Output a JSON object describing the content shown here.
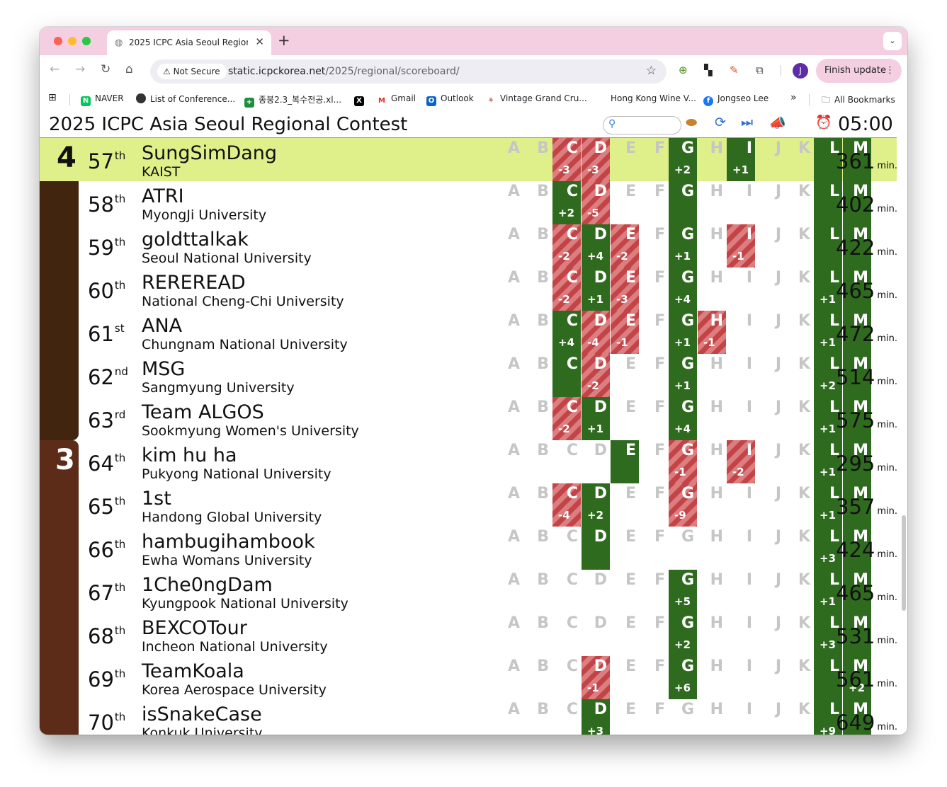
{
  "browser": {
    "tab_title": "2025 ICPC Asia Seoul Region",
    "security_label": "Not Secure",
    "url_host": "static.icpckorea.net",
    "url_path": "/2025/regional/scoreboard/",
    "finish_update_label": "Finish update",
    "profile_initial": "J",
    "bookmarks": [
      "NAVER",
      "List of Conference...",
      "종붕2.3_복수전공.xl...",
      "Gmail",
      "Outlook",
      "Vintage Grand Cru...",
      "Hong Kong Wine V...",
      "Jongseo Lee"
    ],
    "all_bookmarks_label": "All Bookmarks"
  },
  "scoreboard": {
    "title": "2025 ICPC Asia Seoul Regional Contest",
    "time_remaining": "05:00",
    "penalty_unit": "min.",
    "groups": [
      {
        "label": "4",
        "color": "#42250f"
      },
      {
        "label": "3",
        "color": "#5c2c18"
      }
    ],
    "highlight_color": "#dff08a",
    "problems": [
      "A",
      "B",
      "C",
      "D",
      "E",
      "F",
      "G",
      "H",
      "I",
      "J",
      "K",
      "L",
      "M"
    ],
    "rows": [
      {
        "rank": "57",
        "suffix": "th",
        "team": "SungSimDang",
        "univ": "KAIST",
        "penalty": "361",
        "group": 0,
        "highlight": true,
        "cells": {
          "C": [
            "f",
            "-3"
          ],
          "D": [
            "f",
            "-3"
          ],
          "G": [
            "s",
            "+2"
          ],
          "I": [
            "s",
            "+1"
          ],
          "L": [
            "s",
            ""
          ],
          "M": [
            "s",
            ""
          ]
        }
      },
      {
        "rank": "58",
        "suffix": "th",
        "team": "ATRI",
        "univ": "MyongJi University",
        "penalty": "402",
        "group": 0,
        "cells": {
          "C": [
            "s",
            "+2"
          ],
          "D": [
            "f",
            "-5"
          ],
          "G": [
            "s",
            ""
          ],
          "L": [
            "s",
            ""
          ],
          "M": [
            "s",
            ""
          ]
        }
      },
      {
        "rank": "59",
        "suffix": "th",
        "team": "goldttalkak",
        "univ": "Seoul National University",
        "penalty": "422",
        "group": 0,
        "cells": {
          "C": [
            "f",
            "-2"
          ],
          "D": [
            "s",
            "+4"
          ],
          "E": [
            "f",
            "-2"
          ],
          "G": [
            "s",
            "+1"
          ],
          "I": [
            "f",
            "-1"
          ],
          "L": [
            "s",
            ""
          ],
          "M": [
            "s",
            ""
          ]
        }
      },
      {
        "rank": "60",
        "suffix": "th",
        "team": "REREREAD",
        "univ": "National Cheng-Chi University",
        "penalty": "465",
        "group": 0,
        "cells": {
          "C": [
            "f",
            "-2"
          ],
          "D": [
            "s",
            "+1"
          ],
          "E": [
            "f",
            "-3"
          ],
          "G": [
            "s",
            "+4"
          ],
          "L": [
            "s",
            "+1"
          ],
          "M": [
            "s",
            ""
          ]
        }
      },
      {
        "rank": "61",
        "suffix": "st",
        "team": "ANA",
        "univ": "Chungnam National University",
        "penalty": "472",
        "group": 0,
        "cells": {
          "C": [
            "s",
            "+4"
          ],
          "D": [
            "f",
            "-4"
          ],
          "E": [
            "f",
            "-1"
          ],
          "G": [
            "s",
            "+1"
          ],
          "H": [
            "f",
            "-1"
          ],
          "L": [
            "s",
            "+1"
          ],
          "M": [
            "s",
            ""
          ]
        }
      },
      {
        "rank": "62",
        "suffix": "nd",
        "team": "MSG",
        "univ": "Sangmyung University",
        "penalty": "514",
        "group": 0,
        "cells": {
          "C": [
            "s",
            ""
          ],
          "D": [
            "f",
            "-2"
          ],
          "G": [
            "s",
            "+1"
          ],
          "L": [
            "s",
            "+2"
          ],
          "M": [
            "s",
            ""
          ]
        }
      },
      {
        "rank": "63",
        "suffix": "rd",
        "team": "Team ALGOS",
        "univ": "Sookmyung Women's University",
        "penalty": "575",
        "group": 0,
        "cells": {
          "C": [
            "f",
            "-2"
          ],
          "D": [
            "s",
            "+1"
          ],
          "G": [
            "s",
            "+4"
          ],
          "L": [
            "s",
            "+1"
          ],
          "M": [
            "s",
            ""
          ]
        }
      },
      {
        "rank": "64",
        "suffix": "th",
        "team": "kim hu ha",
        "univ": "Pukyong National University",
        "penalty": "295",
        "group": 1,
        "cells": {
          "E": [
            "s",
            ""
          ],
          "G": [
            "f",
            "-1"
          ],
          "I": [
            "f",
            "-2"
          ],
          "L": [
            "s",
            "+1"
          ],
          "M": [
            "s",
            ""
          ]
        }
      },
      {
        "rank": "65",
        "suffix": "th",
        "team": "1st",
        "univ": "Handong Global University",
        "penalty": "357",
        "group": 1,
        "cells": {
          "C": [
            "f",
            "-4"
          ],
          "D": [
            "s",
            "+2"
          ],
          "G": [
            "f",
            "-9"
          ],
          "L": [
            "s",
            "+1"
          ],
          "M": [
            "s",
            ""
          ]
        }
      },
      {
        "rank": "66",
        "suffix": "th",
        "team": "hambugihambook",
        "univ": "Ewha Womans University",
        "penalty": "424",
        "group": 1,
        "cells": {
          "D": [
            "s",
            ""
          ],
          "L": [
            "s",
            "+3"
          ],
          "M": [
            "s",
            ""
          ]
        }
      },
      {
        "rank": "67",
        "suffix": "th",
        "team": "1Che0ngDam",
        "univ": "Kyungpook National University",
        "penalty": "465",
        "group": 1,
        "cells": {
          "G": [
            "s",
            "+5"
          ],
          "L": [
            "s",
            "+1"
          ],
          "M": [
            "s",
            ""
          ]
        }
      },
      {
        "rank": "68",
        "suffix": "th",
        "team": "BEXCOTour",
        "univ": "Incheon National University",
        "penalty": "531",
        "group": 1,
        "cells": {
          "G": [
            "s",
            "+2"
          ],
          "L": [
            "s",
            "+3"
          ],
          "M": [
            "s",
            ""
          ]
        }
      },
      {
        "rank": "69",
        "suffix": "th",
        "team": "TeamKoala",
        "univ": "Korea Aerospace University",
        "penalty": "561",
        "group": 1,
        "cells": {
          "D": [
            "f",
            "-1"
          ],
          "G": [
            "s",
            "+6"
          ],
          "L": [
            "s",
            ""
          ],
          "M": [
            "s",
            "+2"
          ]
        }
      },
      {
        "rank": "70",
        "suffix": "th",
        "team": "isSnakeCase",
        "univ": "Konkuk University",
        "penalty": "649",
        "group": 1,
        "cells": {
          "D": [
            "s",
            "+3"
          ],
          "L": [
            "s",
            "+9"
          ],
          "M": [
            "s",
            ""
          ]
        }
      }
    ]
  }
}
